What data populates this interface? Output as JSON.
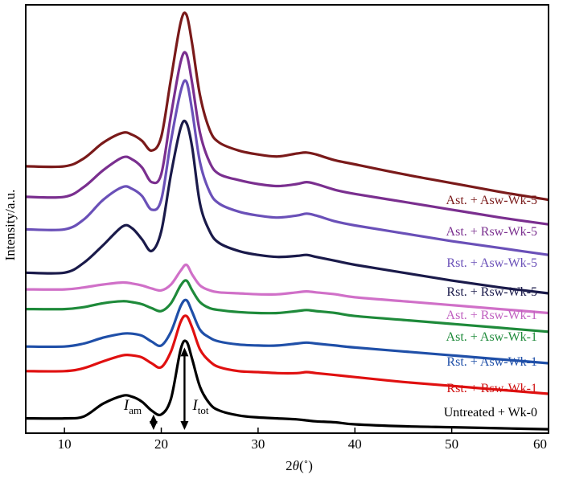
{
  "chart_data": {
    "type": "line",
    "xlabel_parts": [
      "2",
      "θ",
      "(˚)"
    ],
    "ylabel": "Intensity/a.u.",
    "xlim": [
      6,
      60
    ],
    "xticks": [
      10,
      20,
      30,
      40,
      50,
      60
    ],
    "grid": false,
    "legend": "inline-right",
    "annotations": {
      "i_am": {
        "main": "I",
        "sub": "am",
        "x": 19.2
      },
      "i_tot": {
        "main": "I",
        "sub": "tot",
        "x": 22.4
      }
    },
    "x": [
      6,
      10,
      12,
      14,
      16,
      17,
      18,
      19,
      20,
      21,
      22,
      22.6,
      23.2,
      24,
      25,
      26,
      28,
      30,
      32,
      34,
      35,
      36,
      38,
      40,
      45,
      50,
      55,
      60
    ],
    "series": [
      {
        "name": "Untreated + Wk-0",
        "color": "#000000",
        "label_color": "#000000",
        "values": [
          10,
          10,
          12,
          25,
          33,
          32,
          27,
          18,
          14,
          30,
          80,
          88,
          70,
          42,
          25,
          18,
          13,
          11,
          10,
          9,
          8,
          7,
          6,
          4,
          2,
          1,
          0,
          -1
        ]
      },
      {
        "name": "Rst. + Rsw-Wk-1",
        "color": "#e01010",
        "label_color": "#d01010",
        "values": [
          58,
          58,
          61,
          68,
          74,
          74,
          72,
          66,
          62,
          78,
          108,
          114,
          102,
          80,
          68,
          62,
          58,
          57,
          56,
          56,
          57,
          56,
          54,
          52,
          47,
          43,
          39,
          35
        ]
      },
      {
        "name": "Rst. + Asw-Wk-1",
        "color": "#1f4fa8",
        "label_color": "#1f4fa8",
        "values": [
          83,
          83,
          86,
          92,
          96,
          96,
          94,
          88,
          84,
          98,
          124,
          130,
          118,
          100,
          92,
          88,
          85,
          84,
          84,
          86,
          87,
          86,
          84,
          82,
          78,
          74,
          70,
          66
        ]
      },
      {
        "name": "Ast. + Asw-Wk-1",
        "color": "#1e8a3a",
        "label_color": "#1e8a3a",
        "values": [
          121,
          121,
          123,
          127,
          129,
          128,
          126,
          122,
          119,
          127,
          145,
          150,
          140,
          128,
          122,
          120,
          118,
          117,
          117,
          119,
          120,
          119,
          117,
          114,
          110,
          106,
          102,
          98
        ]
      },
      {
        "name": "Ast. + Rsw-Wk-1",
        "color": "#d070c8",
        "label_color": "#c060c0",
        "values": [
          141,
          141,
          143,
          146,
          148,
          147,
          145,
          142,
          140,
          146,
          160,
          166,
          156,
          145,
          140,
          138,
          137,
          136,
          136,
          138,
          139,
          138,
          136,
          133,
          129,
          125,
          121,
          117
        ]
      },
      {
        "name": "Rst. + Rsw-Wk-5",
        "color": "#1a1a4a",
        "label_color": "#1a1a4a",
        "values": [
          158,
          158,
          168,
          186,
          205,
          203,
          192,
          180,
          200,
          258,
          305,
          310,
          285,
          228,
          200,
          188,
          180,
          176,
          174,
          175,
          176,
          174,
          170,
          166,
          158,
          150,
          143,
          137
        ]
      },
      {
        "name": "Rst. + Asw-Wk-5",
        "color": "#6a50b8",
        "label_color": "#6a50b8",
        "values": [
          202,
          202,
          212,
          232,
          245,
          243,
          236,
          222,
          232,
          292,
          342,
          352,
          322,
          270,
          240,
          228,
          220,
          216,
          214,
          216,
          218,
          216,
          210,
          206,
          198,
          190,
          183,
          176
        ]
      },
      {
        "name": "Ast. + Rsw-Wk-5",
        "color": "#7a2f8f",
        "label_color": "#7a2f8f",
        "values": [
          235,
          235,
          245,
          262,
          275,
          273,
          265,
          250,
          258,
          318,
          372,
          380,
          350,
          300,
          270,
          258,
          252,
          248,
          246,
          248,
          250,
          248,
          242,
          238,
          230,
          222,
          214,
          207
        ]
      },
      {
        "name": "Ast. + Asw-Wk-5",
        "color": "#7a1a1a",
        "label_color": "#7a1a1a",
        "values": [
          266,
          266,
          274,
          290,
          300,
          298,
          292,
          282,
          296,
          355,
          412,
          420,
          390,
          338,
          303,
          290,
          282,
          278,
          276,
          279,
          280,
          278,
          272,
          268,
          258,
          249,
          240,
          232
        ]
      }
    ],
    "label_order": [
      "Ast. + Asw-Wk-5",
      "Ast. + Rsw-Wk-5",
      "Rst. + Asw-Wk-5",
      "Rst. + Rsw-Wk-5",
      "Ast. + Rsw-Wk-1",
      "Ast. + Asw-Wk-1",
      "Rst. + Asw-Wk-1",
      "Rst. + Rsw-Wk-1",
      "Untreated + Wk-0"
    ]
  }
}
